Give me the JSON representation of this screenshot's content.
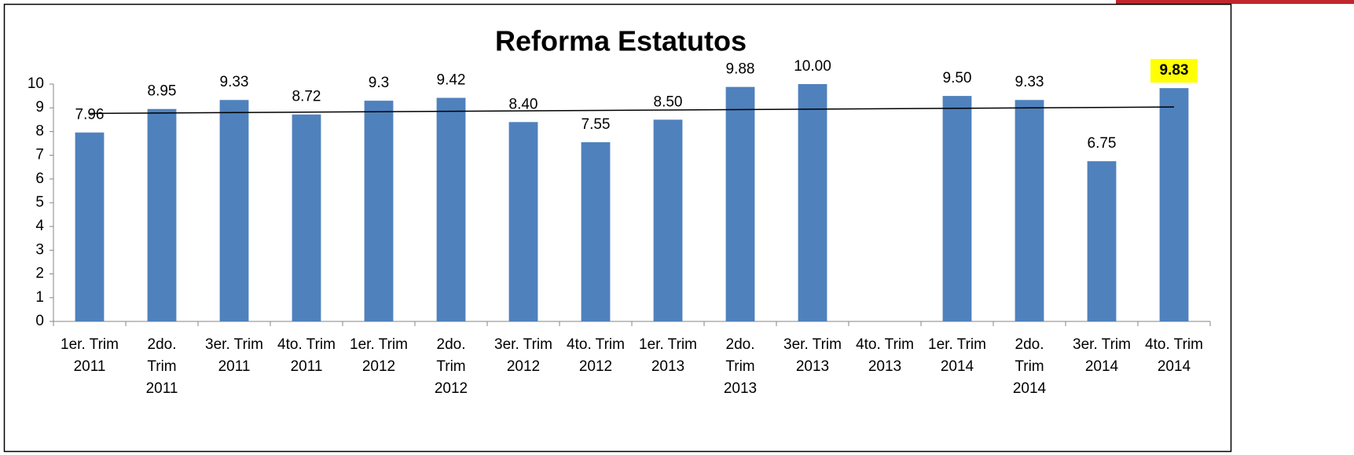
{
  "chart_data": {
    "type": "bar",
    "title": "Reforma Estatutos",
    "categories": [
      [
        "1er. Trim",
        "2011"
      ],
      [
        "2do.",
        "Trim",
        "2011"
      ],
      [
        "3er. Trim",
        "2011"
      ],
      [
        "4to. Trim",
        "2011"
      ],
      [
        "1er. Trim",
        "2012"
      ],
      [
        "2do.",
        "Trim",
        "2012"
      ],
      [
        "3er. Trim",
        "2012"
      ],
      [
        "4to. Trim",
        "2012"
      ],
      [
        "1er. Trim",
        "2013"
      ],
      [
        "2do.",
        "Trim",
        "2013"
      ],
      [
        "3er. Trim",
        "2013"
      ],
      [
        "4to. Trim",
        "2013"
      ],
      [
        "1er. Trim",
        "2014"
      ],
      [
        "2do.",
        "Trim",
        "2014"
      ],
      [
        "3er. Trim",
        "2014"
      ],
      [
        "4to. Trim",
        "2014"
      ]
    ],
    "values": [
      7.96,
      8.95,
      9.33,
      8.72,
      9.3,
      9.42,
      8.4,
      7.55,
      8.5,
      9.88,
      10,
      null,
      9.5,
      9.33,
      6.75,
      9.83
    ],
    "value_labels": [
      "7.96",
      "8.95",
      "9.33",
      "8.72",
      "9.3",
      "9.42",
      "8.40",
      "7.55",
      "8.50",
      "9.88",
      "10.00",
      null,
      "9.50",
      "9.33",
      "6.75",
      "9.83"
    ],
    "color": "#4f81bd",
    "highlight_index": 15,
    "highlight_color": "#ffff00",
    "trendline": "linear",
    "ylim": [
      0,
      10
    ],
    "yticks": [
      0,
      1,
      2,
      3,
      4,
      5,
      6,
      7,
      8,
      9,
      10
    ],
    "grid": false
  }
}
